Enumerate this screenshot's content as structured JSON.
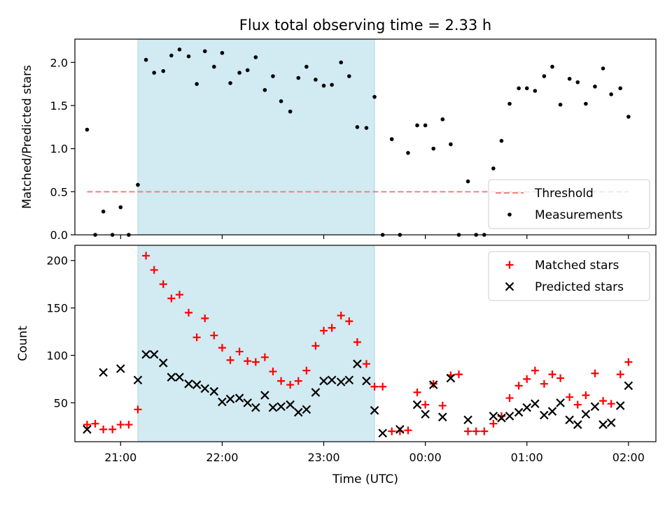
{
  "chart_data": {
    "type": "scatter",
    "title": "Flux total observing time = 2.33 h",
    "x_unit": "hours UTC (times after midnight written as 24+)",
    "xlabel": "Time (UTC)",
    "x_ticks": [
      {
        "x": 21,
        "label": "21:00"
      },
      {
        "x": 22,
        "label": "22:00"
      },
      {
        "x": 23,
        "label": "23:00"
      },
      {
        "x": 24,
        "label": "00:00"
      },
      {
        "x": 25,
        "label": "01:00"
      },
      {
        "x": 26,
        "label": "02:00"
      }
    ],
    "xlim": [
      20.55,
      26.27
    ],
    "shaded_span": [
      21.17,
      23.5
    ],
    "shade_color": "#add8e6",
    "panels": [
      {
        "id": "ratio",
        "ylabel": "Matched/Predicted stars",
        "ylim": [
          0,
          2.27
        ],
        "yticks": [
          0.0,
          0.5,
          1.0,
          1.5,
          2.0
        ],
        "ytick_labels": [
          "0.0",
          "0.5",
          "1.0",
          "1.5",
          "2.0"
        ],
        "threshold": {
          "name": "Threshold",
          "y": 0.5,
          "x_range": [
            20.67,
            26.0
          ],
          "color": "#f08080"
        },
        "series": [
          {
            "name": "Measurements",
            "marker": "dot",
            "color": "#000000",
            "points": [
              [
                20.67,
                1.22
              ],
              [
                20.75,
                0.0
              ],
              [
                20.83,
                0.27
              ],
              [
                20.92,
                0.0
              ],
              [
                21.0,
                0.32
              ],
              [
                21.08,
                0.0
              ],
              [
                21.17,
                0.58
              ],
              [
                21.25,
                2.03
              ],
              [
                21.33,
                1.88
              ],
              [
                21.42,
                1.9
              ],
              [
                21.5,
                2.08
              ],
              [
                21.58,
                2.15
              ],
              [
                21.67,
                2.07
              ],
              [
                21.75,
                1.75
              ],
              [
                21.83,
                2.13
              ],
              [
                21.92,
                1.95
              ],
              [
                22.0,
                2.11
              ],
              [
                22.08,
                1.76
              ],
              [
                22.17,
                1.88
              ],
              [
                22.25,
                1.91
              ],
              [
                22.33,
                2.06
              ],
              [
                22.42,
                1.68
              ],
              [
                22.5,
                1.84
              ],
              [
                22.58,
                1.55
              ],
              [
                22.67,
                1.43
              ],
              [
                22.75,
                1.82
              ],
              [
                22.83,
                1.95
              ],
              [
                22.92,
                1.8
              ],
              [
                23.0,
                1.73
              ],
              [
                23.08,
                1.74
              ],
              [
                23.17,
                2.0
              ],
              [
                23.25,
                1.84
              ],
              [
                23.33,
                1.25
              ],
              [
                23.42,
                1.24
              ],
              [
                23.5,
                1.6
              ],
              [
                23.58,
                0.0
              ],
              [
                23.67,
                1.11
              ],
              [
                23.75,
                0.0
              ],
              [
                23.83,
                0.95
              ],
              [
                23.92,
                1.27
              ],
              [
                24.0,
                1.27
              ],
              [
                24.08,
                1.0
              ],
              [
                24.17,
                1.34
              ],
              [
                24.25,
                1.05
              ],
              [
                24.33,
                0.0
              ],
              [
                24.42,
                0.62
              ],
              [
                24.5,
                0.0
              ],
              [
                24.58,
                0.0
              ],
              [
                24.67,
                0.77
              ],
              [
                24.75,
                1.09
              ],
              [
                24.83,
                1.52
              ],
              [
                24.92,
                1.7
              ],
              [
                25.0,
                1.7
              ],
              [
                25.08,
                1.67
              ],
              [
                25.17,
                1.84
              ],
              [
                25.25,
                1.95
              ],
              [
                25.33,
                1.51
              ],
              [
                25.42,
                1.81
              ],
              [
                25.5,
                1.77
              ],
              [
                25.58,
                1.52
              ],
              [
                25.67,
                1.72
              ],
              [
                25.75,
                1.93
              ],
              [
                25.83,
                1.63
              ],
              [
                25.92,
                1.7
              ],
              [
                26.0,
                1.37
              ]
            ]
          }
        ],
        "legend": {
          "position": "lower right",
          "entries": [
            "Threshold",
            "Measurements"
          ]
        }
      },
      {
        "id": "counts",
        "ylabel": "Count",
        "ylim": [
          9,
          216
        ],
        "yticks": [
          50,
          100,
          150,
          200
        ],
        "ytick_labels": [
          "50",
          "100",
          "150",
          "200"
        ],
        "series": [
          {
            "name": "Matched stars",
            "marker": "plus",
            "color": "#ff0000",
            "points": [
              [
                20.67,
                27
              ],
              [
                20.75,
                28
              ],
              [
                20.83,
                22
              ],
              [
                20.92,
                22
              ],
              [
                21.0,
                27
              ],
              [
                21.08,
                27
              ],
              [
                21.17,
                43
              ],
              [
                21.25,
                205
              ],
              [
                21.33,
                190
              ],
              [
                21.42,
                175
              ],
              [
                21.5,
                160
              ],
              [
                21.58,
                164
              ],
              [
                21.67,
                145
              ],
              [
                21.75,
                119
              ],
              [
                21.83,
                139
              ],
              [
                21.92,
                121
              ],
              [
                22.0,
                108
              ],
              [
                22.08,
                95
              ],
              [
                22.17,
                104
              ],
              [
                22.25,
                94
              ],
              [
                22.33,
                93
              ],
              [
                22.42,
                98
              ],
              [
                22.5,
                83
              ],
              [
                22.58,
                73
              ],
              [
                22.67,
                69
              ],
              [
                22.75,
                73
              ],
              [
                22.83,
                84
              ],
              [
                22.92,
                110
              ],
              [
                23.0,
                126
              ],
              [
                23.08,
                129
              ],
              [
                23.17,
                142
              ],
              [
                23.25,
                136
              ],
              [
                23.33,
                114
              ],
              [
                23.42,
                91
              ],
              [
                23.5,
                67
              ],
              [
                23.58,
                67
              ],
              [
                23.67,
                20
              ],
              [
                23.75,
                20
              ],
              [
                23.83,
                21
              ],
              [
                23.92,
                61
              ],
              [
                24.0,
                48
              ],
              [
                24.08,
                70
              ],
              [
                24.17,
                47
              ],
              [
                24.25,
                79
              ],
              [
                24.33,
                80
              ],
              [
                24.42,
                20
              ],
              [
                24.5,
                20
              ],
              [
                24.58,
                20
              ],
              [
                24.67,
                28
              ],
              [
                24.75,
                36
              ],
              [
                24.83,
                55
              ],
              [
                24.92,
                68
              ],
              [
                25.0,
                75
              ],
              [
                25.08,
                84
              ],
              [
                25.17,
                70
              ],
              [
                25.25,
                80
              ],
              [
                25.33,
                76
              ],
              [
                25.42,
                56
              ],
              [
                25.5,
                48
              ],
              [
                25.58,
                58
              ],
              [
                25.67,
                81
              ],
              [
                25.75,
                52
              ],
              [
                25.83,
                49
              ],
              [
                25.92,
                80
              ],
              [
                26.0,
                93
              ]
            ]
          },
          {
            "name": "Predicted stars",
            "marker": "x",
            "color": "#000000",
            "points": [
              [
                20.67,
                22
              ],
              [
                20.83,
                82
              ],
              [
                21.0,
                86
              ],
              [
                21.17,
                74
              ],
              [
                21.25,
                101
              ],
              [
                21.33,
                101
              ],
              [
                21.42,
                92
              ],
              [
                21.5,
                77
              ],
              [
                21.58,
                77
              ],
              [
                21.67,
                70
              ],
              [
                21.75,
                69
              ],
              [
                21.83,
                65
              ],
              [
                21.92,
                62
              ],
              [
                22.0,
                51
              ],
              [
                22.08,
                54
              ],
              [
                22.17,
                55
              ],
              [
                22.25,
                50
              ],
              [
                22.33,
                45
              ],
              [
                22.42,
                58
              ],
              [
                22.5,
                45
              ],
              [
                22.58,
                46
              ],
              [
                22.67,
                48
              ],
              [
                22.75,
                40
              ],
              [
                22.83,
                43
              ],
              [
                22.92,
                61
              ],
              [
                23.0,
                73
              ],
              [
                23.08,
                74
              ],
              [
                23.17,
                72
              ],
              [
                23.25,
                74
              ],
              [
                23.33,
                91
              ],
              [
                23.42,
                73
              ],
              [
                23.5,
                42
              ],
              [
                23.58,
                18
              ],
              [
                23.75,
                22
              ],
              [
                23.92,
                48
              ],
              [
                24.0,
                38
              ],
              [
                24.08,
                69
              ],
              [
                24.17,
                35
              ],
              [
                24.25,
                76
              ],
              [
                24.42,
                32
              ],
              [
                24.67,
                36
              ],
              [
                24.75,
                34
              ],
              [
                24.83,
                36
              ],
              [
                24.92,
                40
              ],
              [
                25.0,
                45
              ],
              [
                25.08,
                49
              ],
              [
                25.17,
                37
              ],
              [
                25.25,
                41
              ],
              [
                25.33,
                50
              ],
              [
                25.42,
                32
              ],
              [
                25.5,
                27
              ],
              [
                25.58,
                38
              ],
              [
                25.67,
                46
              ],
              [
                25.75,
                27
              ],
              [
                25.83,
                29
              ],
              [
                25.92,
                47
              ],
              [
                26.0,
                68
              ]
            ]
          }
        ],
        "legend": {
          "position": "upper right",
          "entries": [
            "Matched stars",
            "Predicted stars"
          ]
        }
      }
    ]
  }
}
